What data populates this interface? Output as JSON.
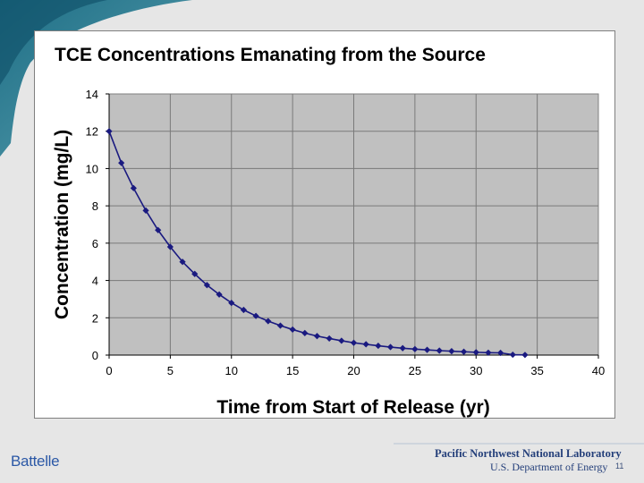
{
  "slide": {
    "logo_text": "Battelle",
    "lab_name": "Pacific Northwest National Laboratory",
    "department": "U.S. Department of Energy",
    "page_number": "11",
    "accent_color": "#1f6f86"
  },
  "chart_data": {
    "type": "line",
    "title": "TCE Concentrations Emanating from the Source",
    "xlabel": "Time from Start of Release (yr)",
    "ylabel": "Concentration (mg/L)",
    "xlim": [
      0,
      40
    ],
    "ylim": [
      0,
      14
    ],
    "xticks": [
      0,
      5,
      10,
      15,
      20,
      25,
      30,
      35,
      40
    ],
    "yticks": [
      0,
      2,
      4,
      6,
      8,
      10,
      12,
      14
    ],
    "grid": true,
    "legend": "none",
    "plot_background": "#c0c0c0",
    "series_color": "#1a1a80",
    "series": [
      {
        "name": "TCE concentration",
        "x": [
          0,
          1,
          2,
          3,
          4,
          5,
          6,
          7,
          8,
          9,
          10,
          11,
          12,
          13,
          14,
          15,
          16,
          17,
          18,
          19,
          20,
          21,
          22,
          23,
          24,
          25,
          26,
          27,
          28,
          29,
          30,
          31,
          32,
          33,
          34
        ],
        "values": [
          12.0,
          10.3,
          8.95,
          7.75,
          6.7,
          5.8,
          5.0,
          4.35,
          3.75,
          3.25,
          2.8,
          2.42,
          2.1,
          1.82,
          1.58,
          1.37,
          1.18,
          1.02,
          0.89,
          0.77,
          0.66,
          0.58,
          0.5,
          0.43,
          0.37,
          0.32,
          0.28,
          0.24,
          0.21,
          0.18,
          0.15,
          0.13,
          0.12,
          0.02,
          0.01
        ]
      }
    ]
  }
}
